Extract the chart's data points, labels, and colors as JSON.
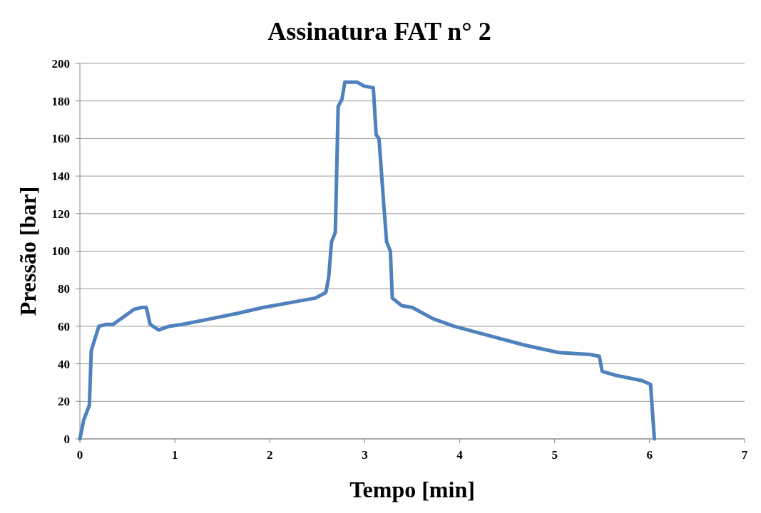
{
  "chart_data": {
    "type": "line",
    "title": "Assinatura FAT n° 2",
    "xlabel": "Tempo [min]",
    "ylabel": "Pressão [bar]",
    "xlim": [
      0,
      7
    ],
    "xticks": [
      0,
      1,
      2,
      3,
      4,
      5,
      6,
      7
    ],
    "ylim": [
      0,
      200
    ],
    "yticks": [
      0,
      20,
      40,
      60,
      80,
      100,
      120,
      140,
      160,
      180,
      200
    ],
    "grid": "y",
    "line_style": "solid",
    "series": [
      {
        "color": "#4f81bd",
        "x": [
          0,
          0.04,
          0.1,
          0.12,
          0.15,
          0.2,
          0.28,
          0.35,
          0.46,
          0.57,
          0.65,
          0.7,
          0.74,
          0.83,
          0.94,
          1.08,
          1.38,
          1.67,
          1.93,
          2.04,
          2.26,
          2.48,
          2.59,
          2.62,
          2.65,
          2.69,
          2.72,
          2.76,
          2.79,
          2.92,
          2.99,
          3.09,
          3.12,
          3.15,
          3.2,
          3.23,
          3.27,
          3.29,
          3.39,
          3.5,
          3.72,
          3.94,
          4.31,
          4.68,
          5.04,
          5.37,
          5.47,
          5.5,
          5.63,
          5.92,
          6.01,
          6.03,
          6.05
        ],
        "values": [
          0,
          10,
          18,
          47,
          52,
          60,
          61,
          61,
          65,
          69,
          70,
          70,
          61,
          58,
          60,
          61,
          64,
          67,
          70,
          71,
          73,
          75,
          78,
          86,
          105,
          110,
          177,
          181,
          190,
          190,
          188,
          187,
          162,
          160,
          125,
          105,
          100,
          75,
          71,
          70,
          64,
          60,
          55,
          50,
          46,
          45,
          44,
          36,
          34,
          31,
          29,
          14,
          0
        ]
      }
    ]
  }
}
